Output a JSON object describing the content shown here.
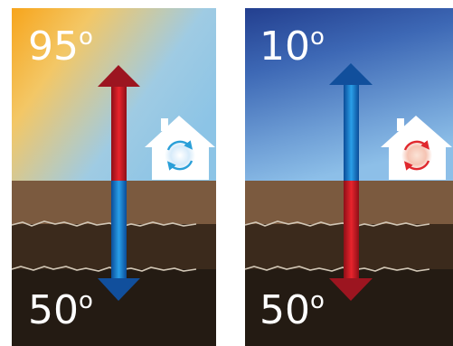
{
  "panels": [
    {
      "id": "summer",
      "surface_temp": "95",
      "ground_temp": "50",
      "degree_symbol": "o",
      "sky_colors": [
        "#f7a51c",
        "#f3c766",
        "#9fcbe3",
        "#8cc4e6"
      ],
      "arrow_top_color": "#b3161f",
      "arrow_bottom_color": "#0f62b8",
      "house_swirl_color": "#2a9fd8",
      "house_glow_color": "#cfe7f8"
    },
    {
      "id": "winter",
      "surface_temp": "10",
      "ground_temp": "50",
      "degree_symbol": "o",
      "sky_colors": [
        "#233f8f",
        "#3d68b5",
        "#6f9fd6",
        "#8dbfe8"
      ],
      "arrow_top_color": "#1559aa",
      "arrow_bottom_color": "#b3161f",
      "house_swirl_color": "#e0282e",
      "house_glow_color": "#f6c9bd"
    }
  ],
  "ground_colors": {
    "topsoil": "#7b5a3f",
    "subsoil": "#3b2a1c",
    "bedrock": "#2a2016",
    "crack": "#d2c7b6"
  }
}
